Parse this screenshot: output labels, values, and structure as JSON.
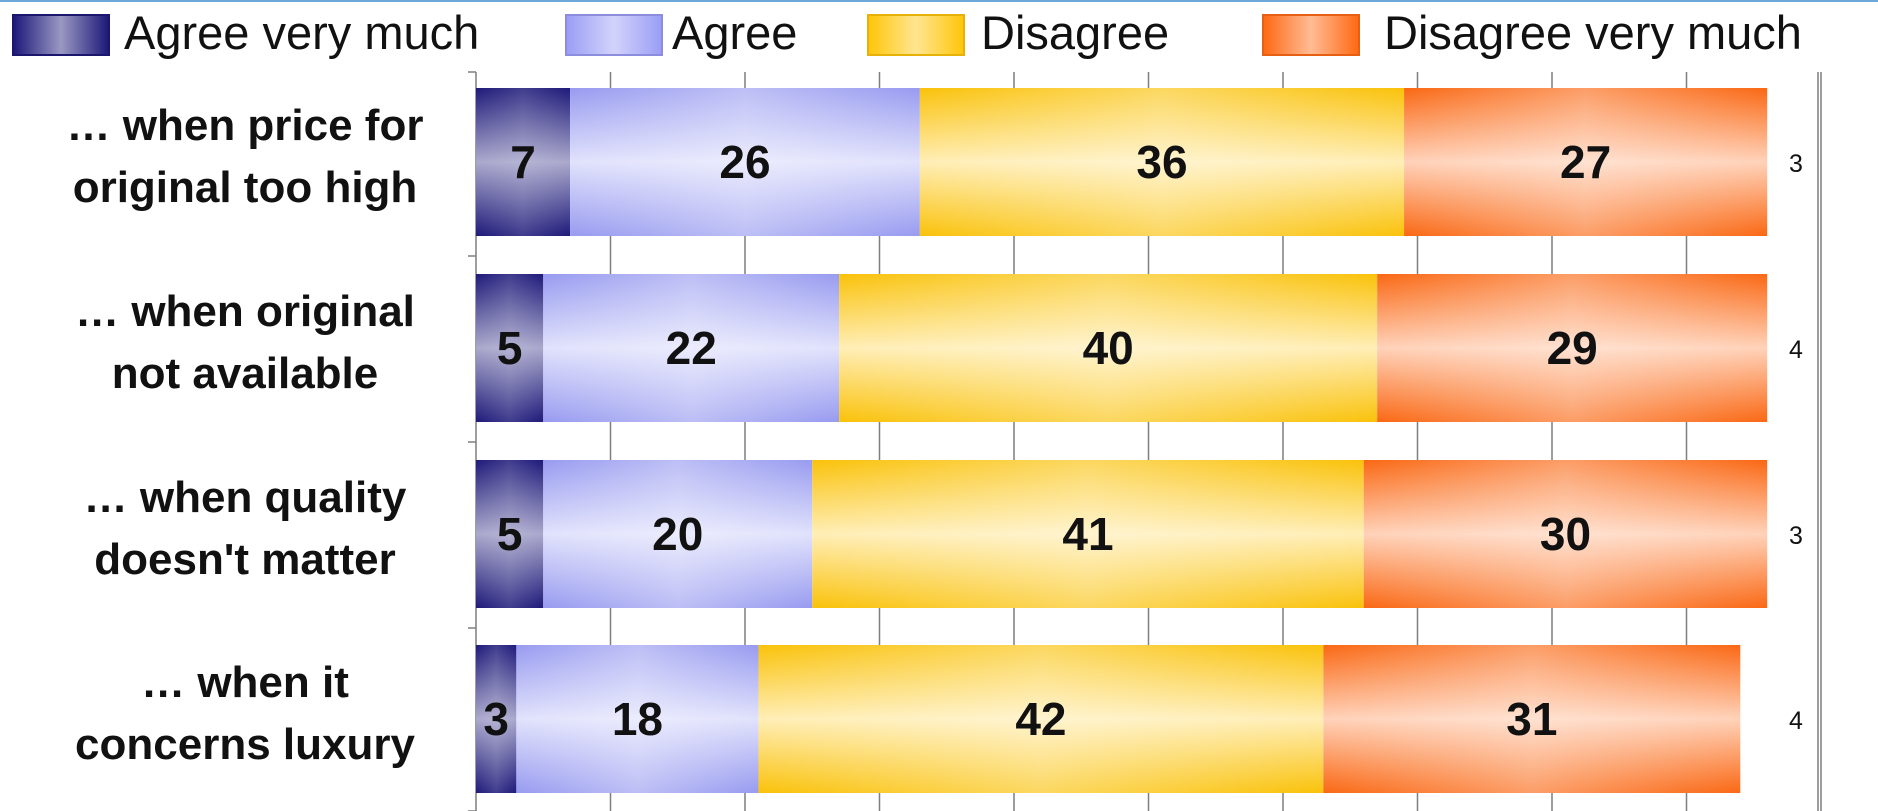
{
  "legend": {
    "items": [
      {
        "label": "Agree very much",
        "color": "#1e1a7a"
      },
      {
        "label": "Agree",
        "color": "#9b9ef5"
      },
      {
        "label": "Disagree",
        "color": "#ffc60a"
      },
      {
        "label": "Disagree very much",
        "color": "#ff6a14"
      }
    ]
  },
  "chart_data": {
    "type": "bar",
    "orientation": "horizontal",
    "stacked": true,
    "categories": [
      [
        "… when price for",
        "original too high"
      ],
      [
        "… when original",
        "not available"
      ],
      [
        "… when quality",
        "doesn't matter"
      ],
      [
        "… when it",
        "concerns luxury"
      ]
    ],
    "series": [
      {
        "name": "Agree very much",
        "values": [
          7,
          5,
          5,
          3
        ],
        "color": "#1e1a7a"
      },
      {
        "name": "Agree",
        "values": [
          26,
          22,
          20,
          18
        ],
        "color": "#9b9ef5"
      },
      {
        "name": "Disagree",
        "values": [
          36,
          40,
          41,
          42
        ],
        "color": "#ffc60a"
      },
      {
        "name": "Disagree very much",
        "values": [
          27,
          29,
          30,
          31
        ],
        "color": "#ff6a14"
      }
    ],
    "remainder_values": [
      3,
      4,
      3,
      4
    ],
    "xlim": [
      0,
      100
    ],
    "grid": true,
    "legend_position": "top"
  }
}
